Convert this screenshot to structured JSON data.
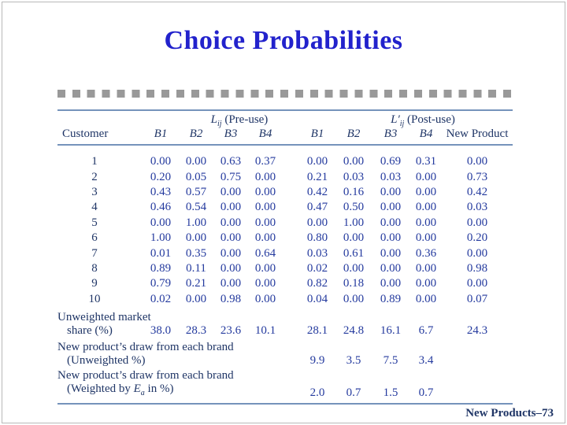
{
  "slide": {
    "title": "Choice Probabilities",
    "footer": "New Products–73"
  },
  "colors": {
    "title_blue": "#2222cc",
    "text_navy": "#1f3566",
    "value_blue": "#243a9e",
    "line_steel": "#7593bb",
    "square_gray": "#999999"
  },
  "table": {
    "group_pre": {
      "symbol": "L",
      "sub": "ij",
      "rest": " (Pre-use)"
    },
    "group_post": {
      "symbol": "L′",
      "sub": "ij",
      "rest": " (Post-use)"
    },
    "customer_header": "Customer",
    "pre_headers": [
      "B1",
      "B2",
      "B3",
      "B4"
    ],
    "post_headers": [
      "B1",
      "B2",
      "B3",
      "B4"
    ],
    "new_product_header": "New Product",
    "rows": [
      {
        "customer": "1",
        "pre": [
          "0.00",
          "0.00",
          "0.63",
          "0.37"
        ],
        "post": [
          "0.00",
          "0.00",
          "0.69",
          "0.31"
        ],
        "np": "0.00"
      },
      {
        "customer": "2",
        "pre": [
          "0.20",
          "0.05",
          "0.75",
          "0.00"
        ],
        "post": [
          "0.21",
          "0.03",
          "0.03",
          "0.00"
        ],
        "np": "0.73"
      },
      {
        "customer": "3",
        "pre": [
          "0.43",
          "0.57",
          "0.00",
          "0.00"
        ],
        "post": [
          "0.42",
          "0.16",
          "0.00",
          "0.00"
        ],
        "np": "0.42"
      },
      {
        "customer": "4",
        "pre": [
          "0.46",
          "0.54",
          "0.00",
          "0.00"
        ],
        "post": [
          "0.47",
          "0.50",
          "0.00",
          "0.00"
        ],
        "np": "0.03"
      },
      {
        "customer": "5",
        "pre": [
          "0.00",
          "1.00",
          "0.00",
          "0.00"
        ],
        "post": [
          "0.00",
          "1.00",
          "0.00",
          "0.00"
        ],
        "np": "0.00"
      },
      {
        "customer": "6",
        "pre": [
          "1.00",
          "0.00",
          "0.00",
          "0.00"
        ],
        "post": [
          "0.80",
          "0.00",
          "0.00",
          "0.00"
        ],
        "np": "0.20"
      },
      {
        "customer": "7",
        "pre": [
          "0.01",
          "0.35",
          "0.00",
          "0.64"
        ],
        "post": [
          "0.03",
          "0.61",
          "0.00",
          "0.36"
        ],
        "np": "0.00"
      },
      {
        "customer": "8",
        "pre": [
          "0.89",
          "0.11",
          "0.00",
          "0.00"
        ],
        "post": [
          "0.02",
          "0.00",
          "0.00",
          "0.00"
        ],
        "np": "0.98"
      },
      {
        "customer": "9",
        "pre": [
          "0.79",
          "0.21",
          "0.00",
          "0.00"
        ],
        "post": [
          "0.82",
          "0.18",
          "0.00",
          "0.00"
        ],
        "np": "0.00"
      },
      {
        "customer": "10",
        "pre": [
          "0.02",
          "0.00",
          "0.98",
          "0.00"
        ],
        "post": [
          "0.04",
          "0.00",
          "0.89",
          "0.00"
        ],
        "np": "0.07"
      }
    ],
    "summary": [
      {
        "label1": "Unweighted market",
        "label2": "share (%)",
        "pre": [
          "38.0",
          "28.3",
          "23.6",
          "10.1"
        ],
        "post": [
          "28.1",
          "24.8",
          "16.1",
          "6.7"
        ],
        "np": "24.3"
      },
      {
        "label1": "New product’s draw from each brand",
        "label2": "(Unweighted %)",
        "pre": [
          "",
          "",
          "",
          ""
        ],
        "post": [
          "9.9",
          "3.5",
          "7.5",
          "3.4"
        ],
        "np": ""
      },
      {
        "label1": "New product’s draw from each brand",
        "label2_pre": "(Weighted by ",
        "label2_sym": "E",
        "label2_sub": "a",
        "label2_post": " in %)",
        "pre": [
          "",
          "",
          "",
          ""
        ],
        "post": [
          "2.0",
          "0.7",
          "1.5",
          "0.7"
        ],
        "np": ""
      }
    ]
  }
}
